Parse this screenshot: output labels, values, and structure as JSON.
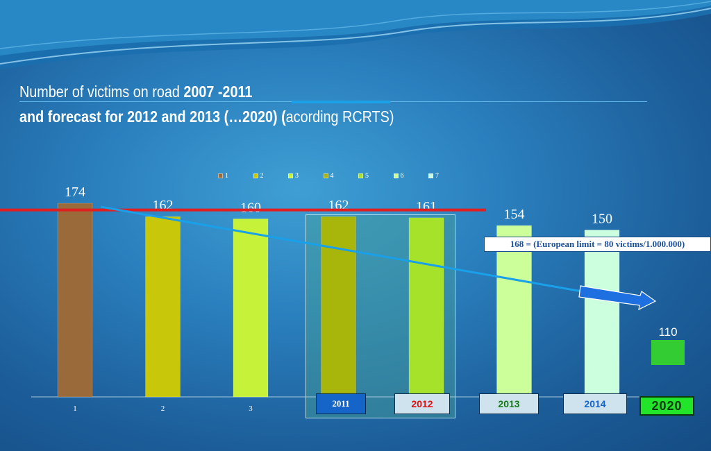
{
  "title": {
    "line1_normal": "Number of victims on road ",
    "line1_bold": "2007 -2011",
    "line2_bold": "and forecast for 2012 and 2013  (…2020)  (",
    "line2_normal": "acording RCRTS)"
  },
  "legend": [
    {
      "label": "1",
      "color": "#9a6a3a"
    },
    {
      "label": "2",
      "color": "#c9c70a"
    },
    {
      "label": "3",
      "color": "#c6f23a"
    },
    {
      "label": "4",
      "color": "#a8b60c"
    },
    {
      "label": "5",
      "color": "#a6e22a"
    },
    {
      "label": "6",
      "color": "#ccff99"
    },
    {
      "label": "7",
      "color": "#ccffdd"
    }
  ],
  "limit_note": "168 = (European limit = 80 victims/1.000.000)",
  "year_labels": {
    "y2011": "2011",
    "y2012": "2012",
    "y2013": "2013",
    "y2014": "2014",
    "y2020": "2020"
  },
  "extra_bar": {
    "value": 110,
    "label": "110",
    "color": "#33cc33"
  },
  "chart_data": {
    "type": "bar",
    "categories": [
      "1",
      "2",
      "3",
      "4",
      "5",
      "6",
      "7"
    ],
    "values": [
      174,
      162,
      160,
      162,
      161,
      154,
      150
    ],
    "colors": [
      "#9a6a3a",
      "#c9c70a",
      "#c6f23a",
      "#a8b60c",
      "#a6e22a",
      "#ccff99",
      "#ccffdd"
    ],
    "visible_ticks": [
      "1",
      "2",
      "3"
    ],
    "reference_line": {
      "value": 168,
      "color": "#e02020"
    },
    "trend_line": {
      "from": 174,
      "to": 150,
      "color": "#1aa0e8"
    },
    "ylim": [
      0,
      174
    ],
    "grid": false,
    "legend_position": "top"
  }
}
